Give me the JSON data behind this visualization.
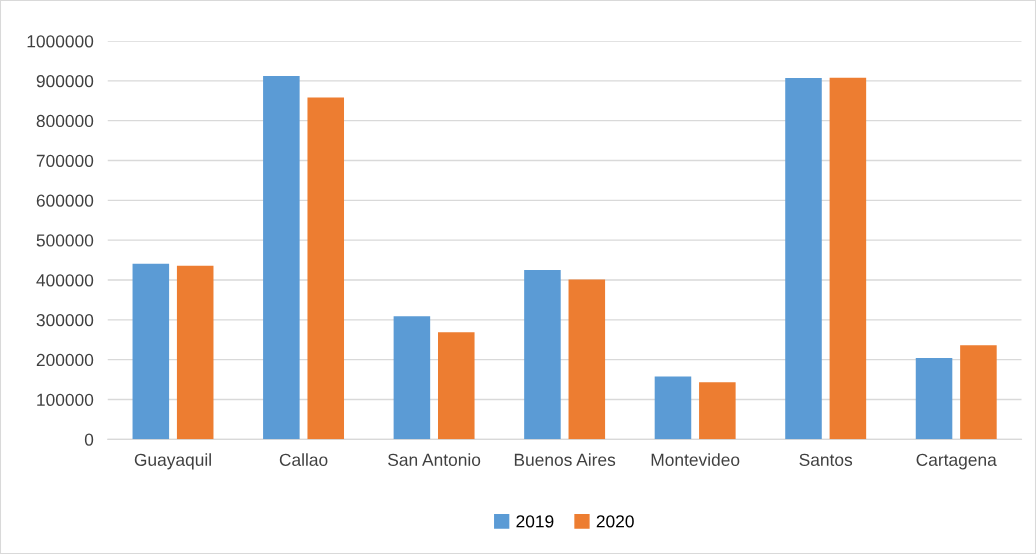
{
  "chart_data": {
    "type": "bar",
    "categories": [
      "Guayaquil",
      "Callao",
      "San Antonio",
      "Buenos Aires",
      "Montevideo",
      "Santos",
      "Cartagena"
    ],
    "series": [
      {
        "name": "2019",
        "color": "#5b9bd5",
        "values": [
          441000,
          912000,
          309000,
          425000,
          158000,
          907000,
          204000
        ]
      },
      {
        "name": "2020",
        "color": "#ed7d31",
        "values": [
          436000,
          858000,
          269000,
          401000,
          143000,
          908000,
          236000
        ]
      }
    ],
    "ylim": [
      0,
      1000000
    ],
    "yticks": [
      0,
      100000,
      200000,
      300000,
      400000,
      500000,
      600000,
      700000,
      800000,
      900000,
      1000000
    ],
    "grid": "y",
    "legend": "bottom"
  }
}
